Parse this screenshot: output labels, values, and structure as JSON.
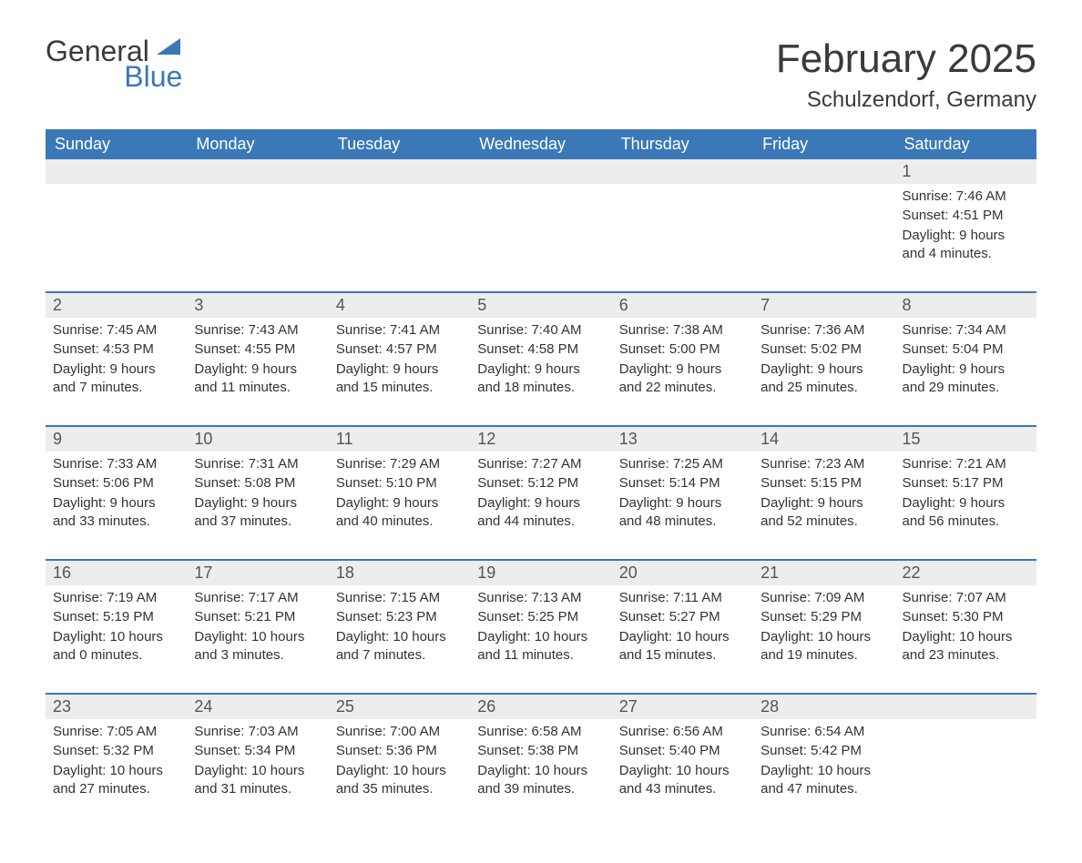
{
  "brand": {
    "part1": "General",
    "part2": "Blue"
  },
  "title": "February 2025",
  "location": "Schulzendorf, Germany",
  "colors": {
    "header_bg": "#3b78b8",
    "header_text": "#ffffff",
    "daynum_bg": "#ededed",
    "row_border": "#3b78b8",
    "body_text": "#333333",
    "title_text": "#3a3a3a",
    "logo_blue": "#3b78b8"
  },
  "weekdays": [
    "Sunday",
    "Monday",
    "Tuesday",
    "Wednesday",
    "Thursday",
    "Friday",
    "Saturday"
  ],
  "first_weekday_index": 6,
  "days": [
    {
      "n": 1,
      "sunrise": "7:46 AM",
      "sunset": "4:51 PM",
      "daylight": "9 hours and 4 minutes."
    },
    {
      "n": 2,
      "sunrise": "7:45 AM",
      "sunset": "4:53 PM",
      "daylight": "9 hours and 7 minutes."
    },
    {
      "n": 3,
      "sunrise": "7:43 AM",
      "sunset": "4:55 PM",
      "daylight": "9 hours and 11 minutes."
    },
    {
      "n": 4,
      "sunrise": "7:41 AM",
      "sunset": "4:57 PM",
      "daylight": "9 hours and 15 minutes."
    },
    {
      "n": 5,
      "sunrise": "7:40 AM",
      "sunset": "4:58 PM",
      "daylight": "9 hours and 18 minutes."
    },
    {
      "n": 6,
      "sunrise": "7:38 AM",
      "sunset": "5:00 PM",
      "daylight": "9 hours and 22 minutes."
    },
    {
      "n": 7,
      "sunrise": "7:36 AM",
      "sunset": "5:02 PM",
      "daylight": "9 hours and 25 minutes."
    },
    {
      "n": 8,
      "sunrise": "7:34 AM",
      "sunset": "5:04 PM",
      "daylight": "9 hours and 29 minutes."
    },
    {
      "n": 9,
      "sunrise": "7:33 AM",
      "sunset": "5:06 PM",
      "daylight": "9 hours and 33 minutes."
    },
    {
      "n": 10,
      "sunrise": "7:31 AM",
      "sunset": "5:08 PM",
      "daylight": "9 hours and 37 minutes."
    },
    {
      "n": 11,
      "sunrise": "7:29 AM",
      "sunset": "5:10 PM",
      "daylight": "9 hours and 40 minutes."
    },
    {
      "n": 12,
      "sunrise": "7:27 AM",
      "sunset": "5:12 PM",
      "daylight": "9 hours and 44 minutes."
    },
    {
      "n": 13,
      "sunrise": "7:25 AM",
      "sunset": "5:14 PM",
      "daylight": "9 hours and 48 minutes."
    },
    {
      "n": 14,
      "sunrise": "7:23 AM",
      "sunset": "5:15 PM",
      "daylight": "9 hours and 52 minutes."
    },
    {
      "n": 15,
      "sunrise": "7:21 AM",
      "sunset": "5:17 PM",
      "daylight": "9 hours and 56 minutes."
    },
    {
      "n": 16,
      "sunrise": "7:19 AM",
      "sunset": "5:19 PM",
      "daylight": "10 hours and 0 minutes."
    },
    {
      "n": 17,
      "sunrise": "7:17 AM",
      "sunset": "5:21 PM",
      "daylight": "10 hours and 3 minutes."
    },
    {
      "n": 18,
      "sunrise": "7:15 AM",
      "sunset": "5:23 PM",
      "daylight": "10 hours and 7 minutes."
    },
    {
      "n": 19,
      "sunrise": "7:13 AM",
      "sunset": "5:25 PM",
      "daylight": "10 hours and 11 minutes."
    },
    {
      "n": 20,
      "sunrise": "7:11 AM",
      "sunset": "5:27 PM",
      "daylight": "10 hours and 15 minutes."
    },
    {
      "n": 21,
      "sunrise": "7:09 AM",
      "sunset": "5:29 PM",
      "daylight": "10 hours and 19 minutes."
    },
    {
      "n": 22,
      "sunrise": "7:07 AM",
      "sunset": "5:30 PM",
      "daylight": "10 hours and 23 minutes."
    },
    {
      "n": 23,
      "sunrise": "7:05 AM",
      "sunset": "5:32 PM",
      "daylight": "10 hours and 27 minutes."
    },
    {
      "n": 24,
      "sunrise": "7:03 AM",
      "sunset": "5:34 PM",
      "daylight": "10 hours and 31 minutes."
    },
    {
      "n": 25,
      "sunrise": "7:00 AM",
      "sunset": "5:36 PM",
      "daylight": "10 hours and 35 minutes."
    },
    {
      "n": 26,
      "sunrise": "6:58 AM",
      "sunset": "5:38 PM",
      "daylight": "10 hours and 39 minutes."
    },
    {
      "n": 27,
      "sunrise": "6:56 AM",
      "sunset": "5:40 PM",
      "daylight": "10 hours and 43 minutes."
    },
    {
      "n": 28,
      "sunrise": "6:54 AM",
      "sunset": "5:42 PM",
      "daylight": "10 hours and 47 minutes."
    }
  ],
  "labels": {
    "sunrise_prefix": "Sunrise: ",
    "sunset_prefix": "Sunset: ",
    "daylight_prefix": "Daylight: "
  }
}
